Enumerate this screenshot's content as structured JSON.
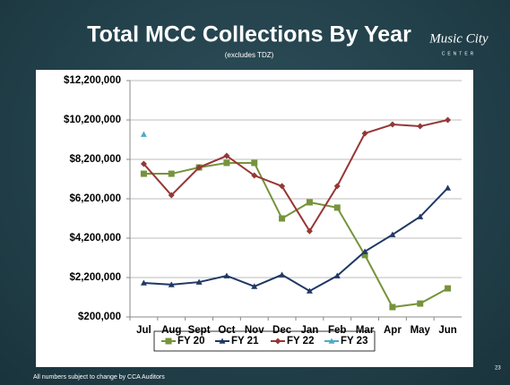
{
  "slide": {
    "title": "Total MCC Collections By Year",
    "subtitle": "(excludes TDZ)",
    "footer": "All numbers subject to change by CCA Auditors",
    "page_number": "23",
    "logo": [
      "Music City",
      "CENTER"
    ]
  },
  "chart_data": {
    "type": "line",
    "categories": [
      "Jul",
      "Aug",
      "Sept",
      "Oct",
      "Nov",
      "Dec",
      "Jan",
      "Feb",
      "Mar",
      "Apr",
      "May",
      "Jun"
    ],
    "series": [
      {
        "name": "FY 20",
        "color": "#77933c",
        "marker": "square",
        "values": [
          7470000,
          7470000,
          7790000,
          8020000,
          8020000,
          5200000,
          6020000,
          5750000,
          3340000,
          700000,
          880000,
          1650000
        ]
      },
      {
        "name": "FY 21",
        "color": "#1f3864",
        "marker": "triangle",
        "values": [
          1930000,
          1840000,
          1970000,
          2290000,
          1750000,
          2340000,
          1520000,
          2290000,
          3520000,
          4380000,
          5290000,
          6750000
        ]
      },
      {
        "name": "FY 22",
        "color": "#953735",
        "marker": "diamond",
        "values": [
          7970000,
          6380000,
          7790000,
          8380000,
          7380000,
          6840000,
          4560000,
          6840000,
          9520000,
          9970000,
          9880000,
          10200000
        ]
      },
      {
        "name": "FY 23",
        "color": "#4bacc6",
        "marker": "triangle",
        "values": [
          9470000,
          null,
          null,
          null,
          null,
          null,
          null,
          null,
          null,
          null,
          null,
          null
        ]
      }
    ],
    "ylim": [
      200000,
      12200000
    ],
    "yticks": [
      {
        "value": 200000,
        "label": "$200,000"
      },
      {
        "value": 2200000,
        "label": "$2,200,000"
      },
      {
        "value": 4200000,
        "label": "$4,200,000"
      },
      {
        "value": 6200000,
        "label": "$6,200,000"
      },
      {
        "value": 8200000,
        "label": "$8,200,000"
      },
      {
        "value": 10200000,
        "label": "$10,200,000"
      },
      {
        "value": 12200000,
        "label": "$12,200,000"
      }
    ],
    "grid": true,
    "legend": "bottom"
  }
}
